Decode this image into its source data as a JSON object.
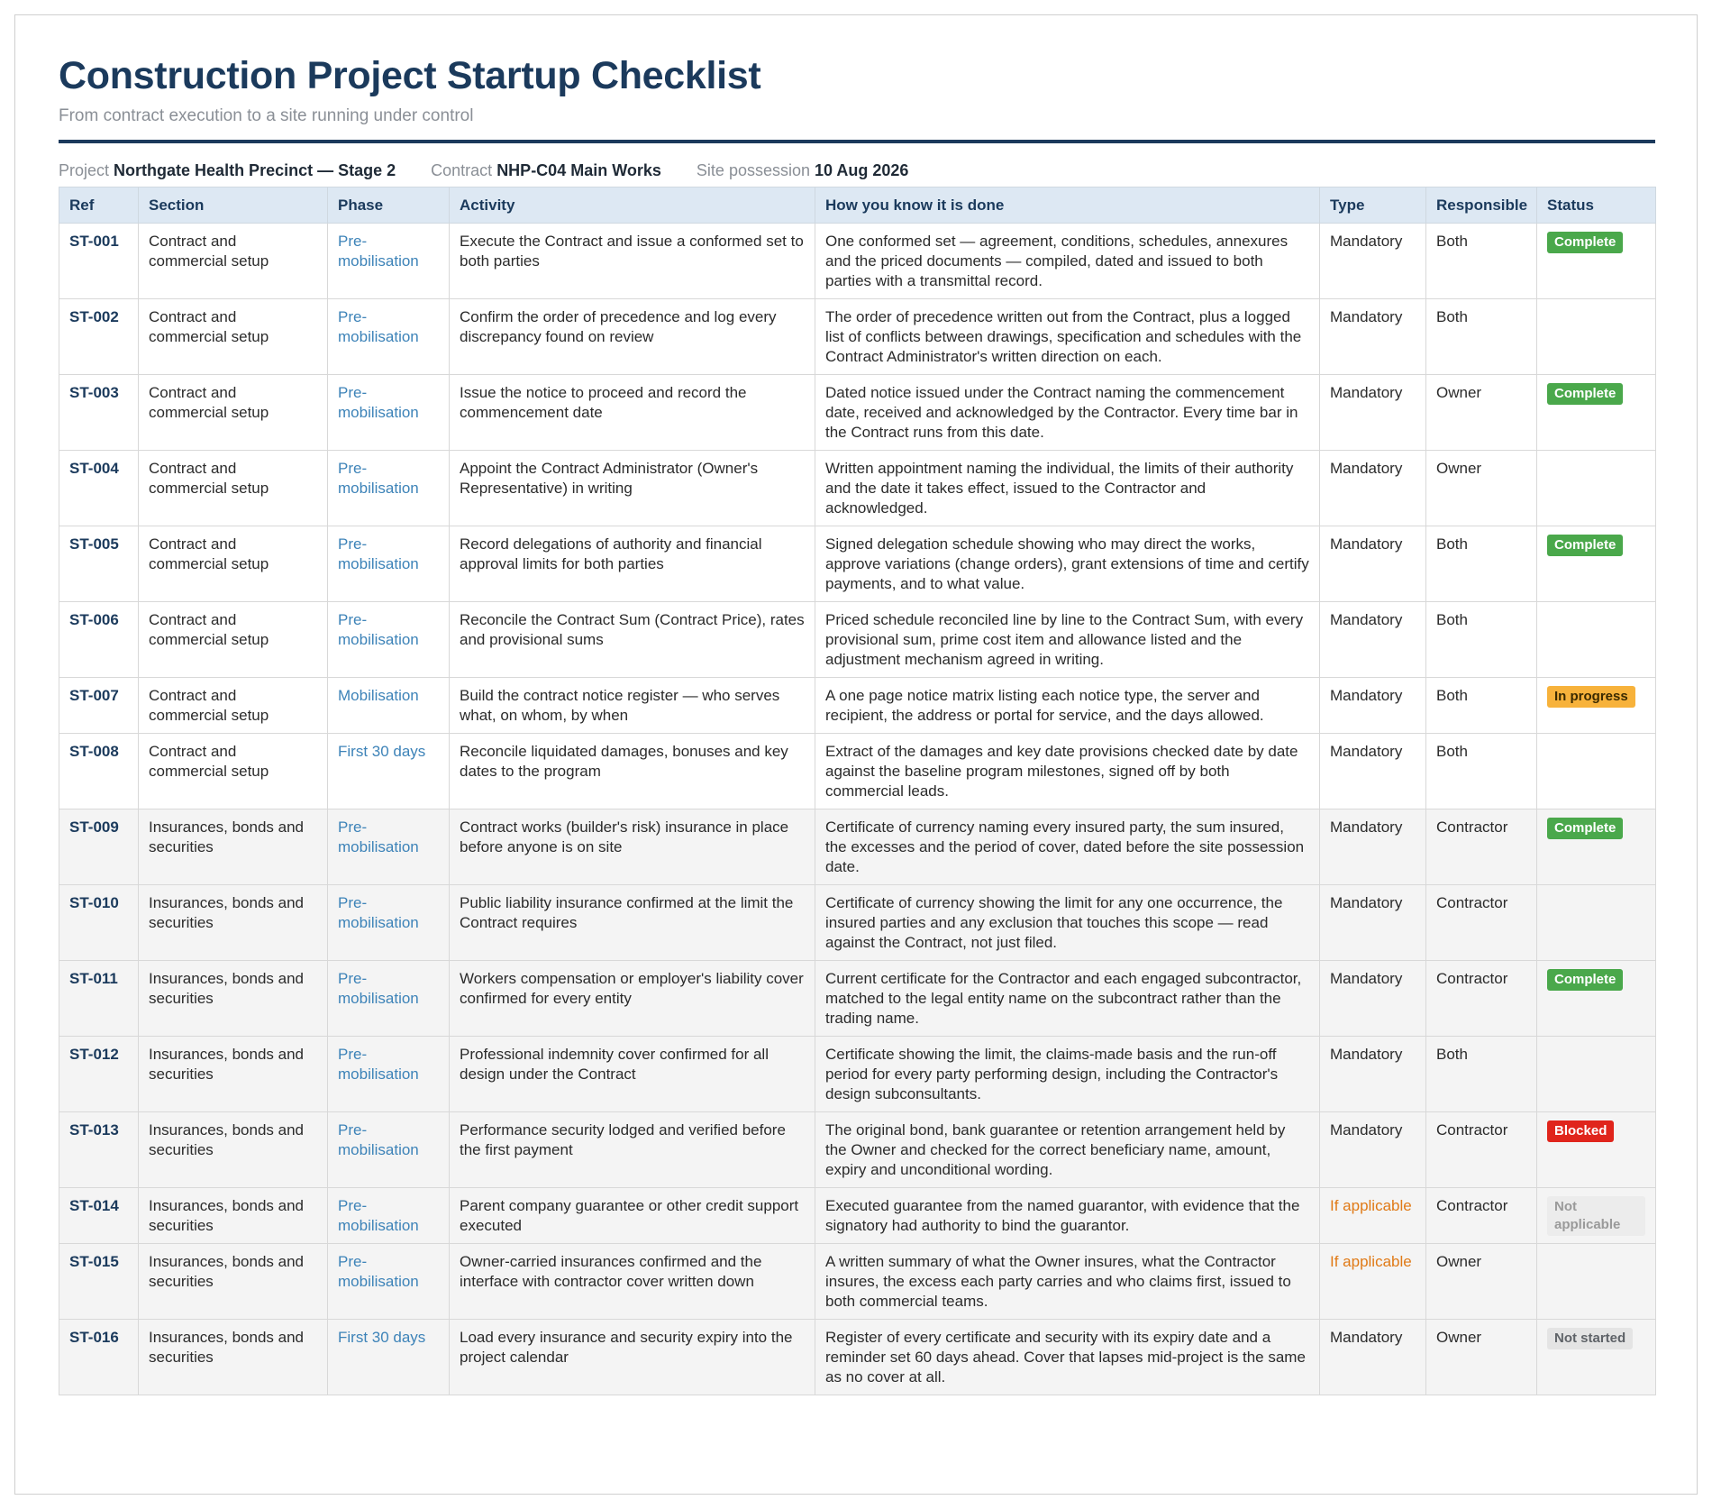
{
  "header": {
    "title": "Construction Project Startup Checklist",
    "subtitle": "From contract execution to a site running under control"
  },
  "meta": {
    "project_label": "Project",
    "project_value": "Northgate Health Precinct — Stage 2",
    "contract_label": "Contract",
    "contract_value": "NHP-C04 Main Works",
    "possession_label": "Site possession",
    "possession_value": "10 Aug 2026"
  },
  "table": {
    "columns": [
      "Ref",
      "Section",
      "Phase",
      "Activity",
      "How you know it is done",
      "Type",
      "Responsible",
      "Status"
    ],
    "rows": [
      {
        "ref": "ST-001",
        "section": "Contract and commercial setup",
        "phase": "Pre-mobilisation",
        "activity": "Execute the Contract and issue a conformed set to both parties",
        "done": "One conformed set — agreement, conditions, schedules, annexures and the priced documents — compiled, dated and issued to both parties with a transmittal record.",
        "type": "Mandatory",
        "responsible": "Both",
        "status": "Complete"
      },
      {
        "ref": "ST-002",
        "section": "Contract and commercial setup",
        "phase": "Pre-mobilisation",
        "activity": "Confirm the order of precedence and log every discrepancy found on review",
        "done": "The order of precedence written out from the Contract, plus a logged list of conflicts between drawings, specification and schedules with the Contract Administrator's written direction on each.",
        "type": "Mandatory",
        "responsible": "Both",
        "status": ""
      },
      {
        "ref": "ST-003",
        "section": "Contract and commercial setup",
        "phase": "Pre-mobilisation",
        "activity": "Issue the notice to proceed and record the commencement date",
        "done": "Dated notice issued under the Contract naming the commencement date, received and acknowledged by the Contractor. Every time bar in the Contract runs from this date.",
        "type": "Mandatory",
        "responsible": "Owner",
        "status": "Complete"
      },
      {
        "ref": "ST-004",
        "section": "Contract and commercial setup",
        "phase": "Pre-mobilisation",
        "activity": "Appoint the Contract Administrator (Owner's Representative) in writing",
        "done": "Written appointment naming the individual, the limits of their authority and the date it takes effect, issued to the Contractor and acknowledged.",
        "type": "Mandatory",
        "responsible": "Owner",
        "status": ""
      },
      {
        "ref": "ST-005",
        "section": "Contract and commercial setup",
        "phase": "Pre-mobilisation",
        "activity": "Record delegations of authority and financial approval limits for both parties",
        "done": "Signed delegation schedule showing who may direct the works, approve variations (change orders), grant extensions of time and certify payments, and to what value.",
        "type": "Mandatory",
        "responsible": "Both",
        "status": "Complete"
      },
      {
        "ref": "ST-006",
        "section": "Contract and commercial setup",
        "phase": "Pre-mobilisation",
        "activity": "Reconcile the Contract Sum (Contract Price), rates and provisional sums",
        "done": "Priced schedule reconciled line by line to the Contract Sum, with every provisional sum, prime cost item and allowance listed and the adjustment mechanism agreed in writing.",
        "type": "Mandatory",
        "responsible": "Both",
        "status": ""
      },
      {
        "ref": "ST-007",
        "section": "Contract and commercial setup",
        "phase": "Mobilisation",
        "activity": "Build the contract notice register — who serves what, on whom, by when",
        "done": "A one page notice matrix listing each notice type, the server and recipient, the address or portal for service, and the days allowed.",
        "type": "Mandatory",
        "responsible": "Both",
        "status": "In progress"
      },
      {
        "ref": "ST-008",
        "section": "Contract and commercial setup",
        "phase": "First 30 days",
        "activity": "Reconcile liquidated damages, bonuses and key dates to the program",
        "done": "Extract of the damages and key date provisions checked date by date against the baseline program milestones, signed off by both commercial leads.",
        "type": "Mandatory",
        "responsible": "Both",
        "status": ""
      },
      {
        "ref": "ST-009",
        "section": "Insurances, bonds and securities",
        "phase": "Pre-mobilisation",
        "activity": "Contract works (builder's risk) insurance in place before anyone is on site",
        "done": "Certificate of currency naming every insured party, the sum insured, the excesses and the period of cover, dated before the site possession date.",
        "type": "Mandatory",
        "responsible": "Contractor",
        "status": "Complete"
      },
      {
        "ref": "ST-010",
        "section": "Insurances, bonds and securities",
        "phase": "Pre-mobilisation",
        "activity": "Public liability insurance confirmed at the limit the Contract requires",
        "done": "Certificate of currency showing the limit for any one occurrence, the insured parties and any exclusion that touches this scope — read against the Contract, not just filed.",
        "type": "Mandatory",
        "responsible": "Contractor",
        "status": ""
      },
      {
        "ref": "ST-011",
        "section": "Insurances, bonds and securities",
        "phase": "Pre-mobilisation",
        "activity": "Workers compensation or employer's liability cover confirmed for every entity",
        "done": "Current certificate for the Contractor and each engaged subcontractor, matched to the legal entity name on the subcontract rather than the trading name.",
        "type": "Mandatory",
        "responsible": "Contractor",
        "status": "Complete"
      },
      {
        "ref": "ST-012",
        "section": "Insurances, bonds and securities",
        "phase": "Pre-mobilisation",
        "activity": "Professional indemnity cover confirmed for all design under the Contract",
        "done": "Certificate showing the limit, the claims-made basis and the run-off period for every party performing design, including the Contractor's design subconsultants.",
        "type": "Mandatory",
        "responsible": "Both",
        "status": ""
      },
      {
        "ref": "ST-013",
        "section": "Insurances, bonds and securities",
        "phase": "Pre-mobilisation",
        "activity": "Performance security lodged and verified before the first payment",
        "done": "The original bond, bank guarantee or retention arrangement held by the Owner and checked for the correct beneficiary name, amount, expiry and unconditional wording.",
        "type": "Mandatory",
        "responsible": "Contractor",
        "status": "Blocked"
      },
      {
        "ref": "ST-014",
        "section": "Insurances, bonds and securities",
        "phase": "Pre-mobilisation",
        "activity": "Parent company guarantee or other credit support executed",
        "done": "Executed guarantee from the named guarantor, with evidence that the signatory had authority to bind the guarantor.",
        "type": "If applicable",
        "responsible": "Contractor",
        "status": "Not applicable"
      },
      {
        "ref": "ST-015",
        "section": "Insurances, bonds and securities",
        "phase": "Pre-mobilisation",
        "activity": "Owner-carried insurances confirmed and the interface with contractor cover written down",
        "done": "A written summary of what the Owner insures, what the Contractor insures, the excess each party carries and who claims first, issued to both commercial teams.",
        "type": "If applicable",
        "responsible": "Owner",
        "status": ""
      },
      {
        "ref": "ST-016",
        "section": "Insurances, bonds and securities",
        "phase": "First 30 days",
        "activity": "Load every insurance and security expiry into the project calendar",
        "done": "Register of every certificate and security with its expiry date and a reminder set 60 days ahead. Cover that lapses mid-project is the same as no cover at all.",
        "type": "Mandatory",
        "responsible": "Owner",
        "status": "Not started"
      }
    ]
  },
  "status_colors": {
    "Complete": "#4aa84b",
    "In progress": "#f7b23b",
    "Blocked": "#e0251c",
    "Not applicable": "#ececec",
    "Not started": "#e4e4e4"
  }
}
